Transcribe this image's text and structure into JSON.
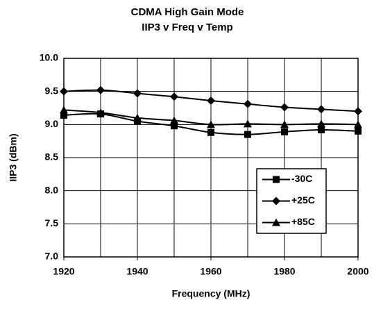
{
  "chart_data": {
    "type": "line",
    "title": "CDMA High Gain Mode",
    "subtitle": "IIP3 v Freq v Temp",
    "x_label": "Frequency (MHz)",
    "y_label": "IIP3 (dBm)",
    "x": [
      1920,
      1930,
      1940,
      1950,
      1960,
      1970,
      1980,
      1990,
      2000
    ],
    "series": [
      {
        "name": "-30C",
        "color": "#000000",
        "marker": "square",
        "values": [
          9.14,
          9.16,
          9.05,
          8.98,
          8.88,
          8.85,
          8.89,
          8.92,
          8.9
        ]
      },
      {
        "name": "+25C",
        "color": "#000000",
        "marker": "diamond",
        "values": [
          9.5,
          9.52,
          9.47,
          9.42,
          9.36,
          9.31,
          9.26,
          9.23,
          9.2
        ]
      },
      {
        "name": "+85C",
        "color": "#000000",
        "marker": "triangle",
        "values": [
          9.22,
          9.18,
          9.1,
          9.06,
          9.0,
          9.01,
          9.0,
          9.01,
          9.0
        ]
      }
    ],
    "xlim": [
      1920,
      2000
    ],
    "xticks": [
      1920,
      1940,
      1960,
      1980,
      2000
    ],
    "ylim": [
      7,
      10
    ],
    "yticks": [
      {
        "value": 7,
        "label": "7.0"
      },
      {
        "value": 7.5,
        "label": "7.5"
      },
      {
        "value": 8,
        "label": "8.0"
      },
      {
        "value": 8.5,
        "label": "8.5"
      },
      {
        "value": 9,
        "label": "9.0"
      },
      {
        "value": 9.5,
        "label": "9.5"
      },
      {
        "value": 10,
        "label": "10.0"
      }
    ],
    "xgrid_step": 10,
    "grid": true,
    "legend": "lower right"
  }
}
